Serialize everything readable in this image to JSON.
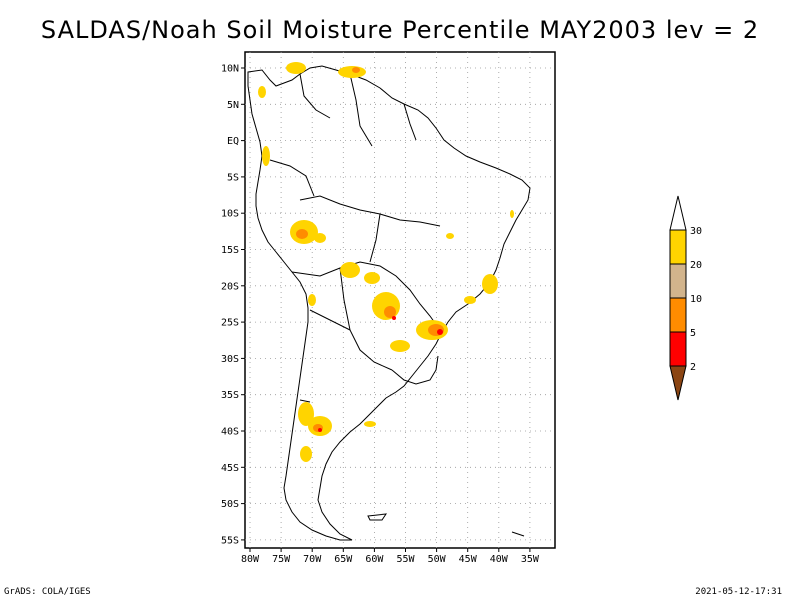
{
  "title": "SALDAS/Noah Soil Moisture Percentile MAY2003 lev = 2",
  "lat_labels": [
    "10N",
    "5N",
    "EQ",
    "5S",
    "10S",
    "15S",
    "20S",
    "25S",
    "30S",
    "35S",
    "40S",
    "45S",
    "50S",
    "55S"
  ],
  "lon_labels": [
    "80W",
    "75W",
    "70W",
    "65W",
    "60W",
    "55W",
    "50W",
    "45W",
    "40W",
    "35W"
  ],
  "legend": {
    "labels": [
      "30",
      "20",
      "10",
      "5",
      "2"
    ],
    "colors": [
      "#FFD400",
      "#D2B48C",
      "#FF8C00",
      "#FF0000",
      "#8B4513"
    ]
  },
  "footer_left": "GrADS: COLA/IGES",
  "footer_right": "2021-05-12-17:31"
}
